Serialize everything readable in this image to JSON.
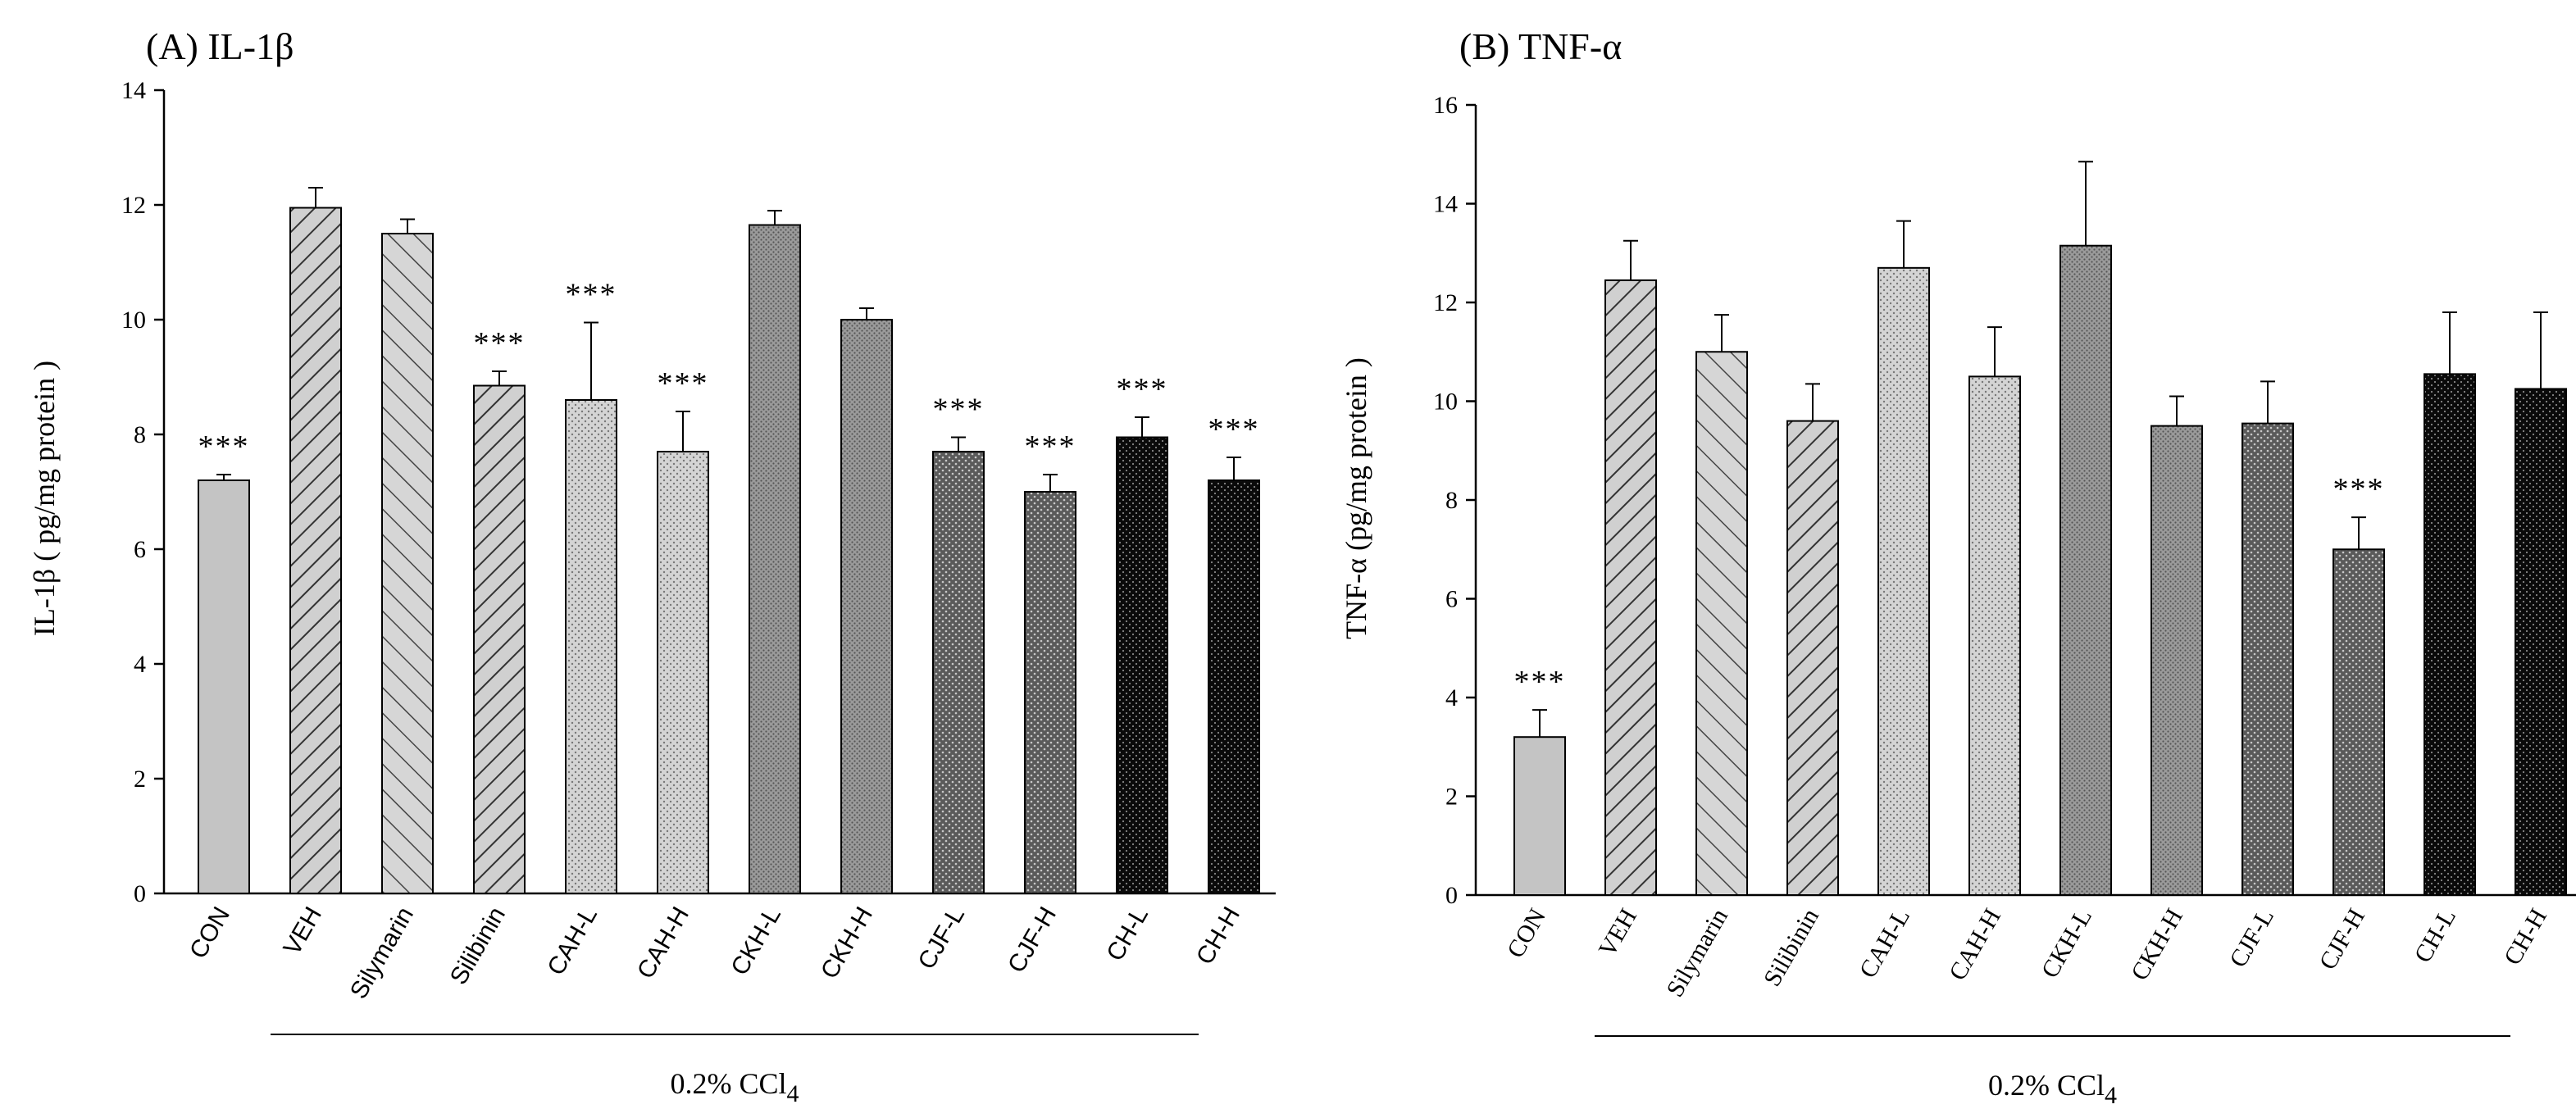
{
  "chart_data": [
    {
      "type": "bar",
      "title": "(A) IL-1β",
      "ylabel": "IL-1β ( pg/mg protein )",
      "xlabel": "",
      "ylim": [
        0,
        14
      ],
      "yticks": [
        "0",
        "2",
        "4",
        "6",
        "8",
        "10",
        "12",
        "14"
      ],
      "categories": [
        "CON",
        "VEH",
        "Silymarin",
        "Silibinin",
        "CAH-L",
        "CAH-H",
        "CKH-L",
        "CKH-H",
        "CJF-L",
        "CJF-H",
        "CH-L",
        "CH-H"
      ],
      "values": [
        7.2,
        11.95,
        11.5,
        8.85,
        8.6,
        7.7,
        11.65,
        10.0,
        7.7,
        7.0,
        7.95,
        7.2
      ],
      "errors": [
        0.1,
        0.35,
        0.25,
        0.25,
        1.35,
        0.7,
        0.25,
        0.2,
        0.25,
        0.3,
        0.35,
        0.4
      ],
      "significance": [
        "***",
        "",
        "",
        "***",
        "***",
        "***",
        "",
        "",
        "***",
        "***",
        "***",
        "***"
      ],
      "patterns": [
        "solid-light",
        "diag-fwd",
        "diag-back",
        "diag-fwd",
        "dots-light",
        "dots-light",
        "dots-fine",
        "dots-fine",
        "dots-dark",
        "dots-dark",
        "dots-black",
        "dots-black"
      ],
      "group_label": "0.2% CCl4",
      "group_label_main": "0.2% CCl",
      "group_label_sub": "4"
    },
    {
      "type": "bar",
      "title": "(B) TNF-α",
      "ylabel": "TNF-α (pg/mg protein )",
      "xlabel": "",
      "ylim": [
        0,
        16
      ],
      "yticks": [
        "0",
        "2",
        "4",
        "6",
        "8",
        "10",
        "12",
        "14",
        "16"
      ],
      "categories": [
        "CON",
        "VEH",
        "Silymarin",
        "Silibinin",
        "CAH-L",
        "CAH-H",
        "CKH-L",
        "CKH-H",
        "CJF-L",
        "CJF-H",
        "CH-L",
        "CH-H"
      ],
      "values": [
        3.2,
        12.45,
        11.0,
        9.6,
        12.7,
        10.5,
        13.15,
        9.5,
        9.55,
        7.0,
        10.55,
        10.25
      ],
      "errors": [
        0.55,
        0.8,
        0.75,
        0.75,
        0.95,
        1.0,
        1.7,
        0.6,
        0.85,
        0.65,
        1.25,
        1.55
      ],
      "significance": [
        "***",
        "",
        "",
        "",
        "",
        "",
        "",
        "",
        "",
        "***",
        "",
        ""
      ],
      "patterns": [
        "solid-light",
        "diag-fwd",
        "diag-back",
        "diag-fwd",
        "dots-light",
        "dots-light",
        "dots-fine",
        "dots-fine",
        "dots-dark",
        "dots-dark",
        "dots-black",
        "dots-black"
      ],
      "group_label": "0.2% CCl4",
      "group_label_main": "0.2% CCl",
      "group_label_sub": "4"
    }
  ]
}
